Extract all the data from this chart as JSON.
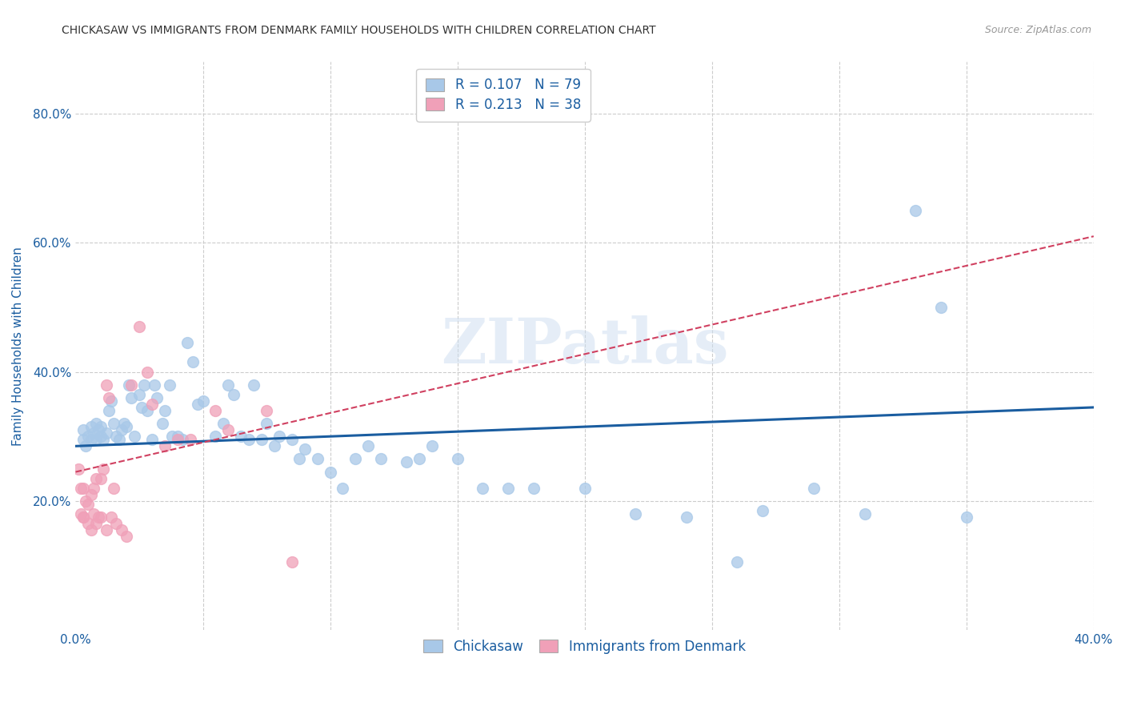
{
  "title": "CHICKASAW VS IMMIGRANTS FROM DENMARK FAMILY HOUSEHOLDS WITH CHILDREN CORRELATION CHART",
  "source": "Source: ZipAtlas.com",
  "ylabel": "Family Households with Children",
  "watermark": "ZIPatlas",
  "xlim": [
    0.0,
    0.4
  ],
  "ylim": [
    0.0,
    0.88
  ],
  "xticks": [
    0.0,
    0.05,
    0.1,
    0.15,
    0.2,
    0.25,
    0.3,
    0.35,
    0.4
  ],
  "yticks": [
    0.2,
    0.4,
    0.6,
    0.8
  ],
  "ytick_labels": [
    "20.0%",
    "40.0%",
    "60.0%",
    "80.0%"
  ],
  "xtick_labels_show": [
    0,
    8
  ],
  "legend_blue_r": "R = 0.107",
  "legend_blue_n": "N = 79",
  "legend_pink_r": "R = 0.213",
  "legend_pink_n": "N = 38",
  "legend_label_blue": "Chickasaw",
  "legend_label_pink": "Immigrants from Denmark",
  "blue_color": "#a8c8e8",
  "pink_color": "#f0a0b8",
  "blue_line_color": "#1a5da0",
  "pink_line_color": "#d04060",
  "background_color": "#ffffff",
  "grid_color": "#cccccc",
  "title_color": "#333333",
  "axis_label_color": "#1a5da0",
  "source_color": "#999999",
  "blue_scatter_x": [
    0.003,
    0.003,
    0.004,
    0.005,
    0.006,
    0.006,
    0.007,
    0.008,
    0.008,
    0.009,
    0.01,
    0.01,
    0.011,
    0.012,
    0.013,
    0.014,
    0.015,
    0.016,
    0.017,
    0.018,
    0.019,
    0.02,
    0.021,
    0.022,
    0.023,
    0.025,
    0.026,
    0.027,
    0.028,
    0.03,
    0.031,
    0.032,
    0.034,
    0.035,
    0.037,
    0.038,
    0.04,
    0.042,
    0.044,
    0.046,
    0.048,
    0.05,
    0.055,
    0.058,
    0.06,
    0.062,
    0.065,
    0.068,
    0.07,
    0.073,
    0.075,
    0.078,
    0.08,
    0.085,
    0.088,
    0.09,
    0.095,
    0.1,
    0.105,
    0.11,
    0.115,
    0.12,
    0.13,
    0.135,
    0.14,
    0.15,
    0.16,
    0.17,
    0.18,
    0.2,
    0.22,
    0.24,
    0.26,
    0.27,
    0.29,
    0.31,
    0.33,
    0.34,
    0.35
  ],
  "blue_scatter_y": [
    0.295,
    0.31,
    0.285,
    0.3,
    0.295,
    0.315,
    0.305,
    0.32,
    0.295,
    0.31,
    0.3,
    0.315,
    0.295,
    0.305,
    0.34,
    0.355,
    0.32,
    0.3,
    0.295,
    0.31,
    0.32,
    0.315,
    0.38,
    0.36,
    0.3,
    0.365,
    0.345,
    0.38,
    0.34,
    0.295,
    0.38,
    0.36,
    0.32,
    0.34,
    0.38,
    0.3,
    0.3,
    0.295,
    0.445,
    0.415,
    0.35,
    0.355,
    0.3,
    0.32,
    0.38,
    0.365,
    0.3,
    0.295,
    0.38,
    0.295,
    0.32,
    0.285,
    0.3,
    0.295,
    0.265,
    0.28,
    0.265,
    0.245,
    0.22,
    0.265,
    0.285,
    0.265,
    0.26,
    0.265,
    0.285,
    0.265,
    0.22,
    0.22,
    0.22,
    0.22,
    0.18,
    0.175,
    0.105,
    0.185,
    0.22,
    0.18,
    0.65,
    0.5,
    0.175
  ],
  "pink_scatter_x": [
    0.001,
    0.002,
    0.002,
    0.003,
    0.003,
    0.003,
    0.004,
    0.005,
    0.005,
    0.006,
    0.006,
    0.007,
    0.007,
    0.008,
    0.008,
    0.009,
    0.01,
    0.01,
    0.011,
    0.012,
    0.012,
    0.013,
    0.014,
    0.015,
    0.016,
    0.018,
    0.02,
    0.022,
    0.025,
    0.028,
    0.03,
    0.035,
    0.04,
    0.045,
    0.055,
    0.06,
    0.075,
    0.085
  ],
  "pink_scatter_y": [
    0.25,
    0.22,
    0.18,
    0.175,
    0.175,
    0.22,
    0.2,
    0.195,
    0.165,
    0.21,
    0.155,
    0.22,
    0.18,
    0.235,
    0.165,
    0.175,
    0.235,
    0.175,
    0.25,
    0.155,
    0.38,
    0.36,
    0.175,
    0.22,
    0.165,
    0.155,
    0.145,
    0.38,
    0.47,
    0.4,
    0.35,
    0.285,
    0.295,
    0.295,
    0.34,
    0.31,
    0.34,
    0.105
  ],
  "blue_line_x": [
    0.0,
    0.4
  ],
  "blue_line_y_start": 0.285,
  "blue_line_y_end": 0.345,
  "pink_line_x": [
    0.0,
    0.4
  ],
  "pink_line_y_start": 0.245,
  "pink_line_y_end": 0.61
}
